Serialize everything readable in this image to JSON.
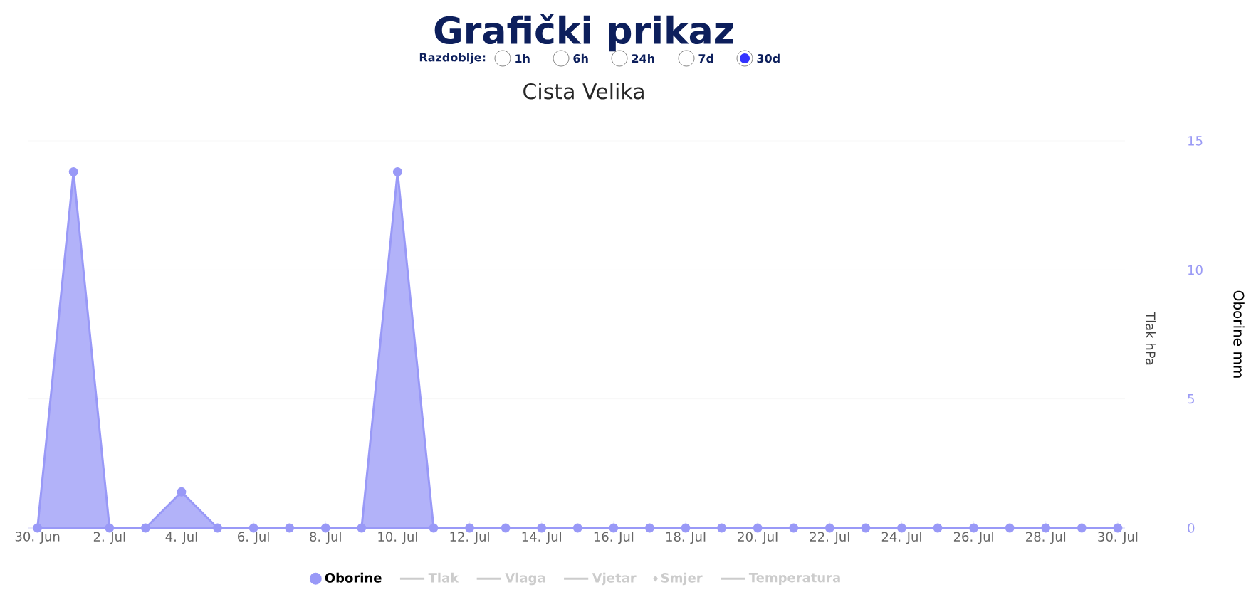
{
  "chart_data": {
    "type": "area",
    "title": "Grafički prikaz",
    "subtitle": "Cista Velika",
    "annotations": [
      "Razdoblje:",
      "1h",
      "6h",
      "24h",
      "7d",
      "30d"
    ],
    "ylabel": "Oborine mm",
    "y2label": "Tlak hPa",
    "categories": [
      "30. Jun",
      null,
      "2. Jul",
      null,
      "4. Jul",
      null,
      "6. Jul",
      null,
      "8. Jul",
      null,
      "10. Jul",
      null,
      "12. Jul",
      null,
      "14. Jul",
      null,
      "16. Jul",
      null,
      "18. Jul",
      null,
      "20. Jul",
      null,
      "22. Jul",
      null,
      "24. Jul",
      null,
      "26. Jul",
      null,
      "28. Jul",
      null,
      "30. Jul"
    ],
    "series": [
      {
        "name": "Oborine",
        "color": "#9999f7",
        "values": [
          0,
          13.8,
          0,
          0,
          1.4,
          0,
          0,
          0,
          0,
          0,
          13.8,
          0,
          0,
          0,
          0,
          0,
          0,
          0,
          0,
          0,
          0,
          0,
          0,
          0,
          0,
          0,
          0,
          0,
          0,
          0,
          0
        ]
      },
      {
        "name": "Tlak",
        "color": "#cccccc",
        "type": "line",
        "values": [
          null,
          null,
          null,
          null,
          null,
          null,
          null,
          null,
          null,
          null,
          null,
          null,
          null,
          null,
          null,
          null,
          null,
          null,
          null,
          null,
          null,
          null,
          null,
          null,
          null,
          null,
          null,
          null,
          null,
          null,
          null
        ]
      },
      {
        "name": "Vlaga",
        "color": "#cccccc",
        "type": "line",
        "values": [
          null,
          null,
          null,
          null,
          null,
          null,
          null,
          null,
          null,
          null,
          null,
          null,
          null,
          null,
          null,
          null,
          null,
          null,
          null,
          null,
          null,
          null,
          null,
          null,
          null,
          null,
          null,
          null,
          null,
          null,
          null
        ]
      },
      {
        "name": "Vjetar",
        "color": "#cccccc",
        "type": "line",
        "values": [
          null,
          null,
          null,
          null,
          null,
          null,
          null,
          null,
          null,
          null,
          null,
          null,
          null,
          null,
          null,
          null,
          null,
          null,
          null,
          null,
          null,
          null,
          null,
          null,
          null,
          null,
          null,
          null,
          null,
          null,
          null
        ]
      },
      {
        "name": "Smjer",
        "color": "#cccccc",
        "type": "scatter",
        "values": [
          null,
          null,
          null,
          null,
          null,
          null,
          null,
          null,
          null,
          null,
          null,
          null,
          null,
          null,
          null,
          null,
          null,
          null,
          null,
          null,
          null,
          null,
          null,
          null,
          null,
          null,
          null,
          null,
          null,
          null,
          null
        ]
      },
      {
        "name": "Temperatura",
        "color": "#cccccc",
        "type": "line",
        "values": [
          null,
          null,
          null,
          null,
          null,
          null,
          null,
          null,
          null,
          null,
          null,
          null,
          null,
          null,
          null,
          null,
          null,
          null,
          null,
          null,
          null,
          null,
          null,
          null,
          null,
          null,
          null,
          null,
          null,
          null,
          null
        ]
      }
    ],
    "ylim": [
      0,
      15
    ],
    "yticks": [
      0,
      5,
      10,
      15
    ],
    "grid": "y",
    "marker": "circle",
    "legend": "bottom"
  }
}
